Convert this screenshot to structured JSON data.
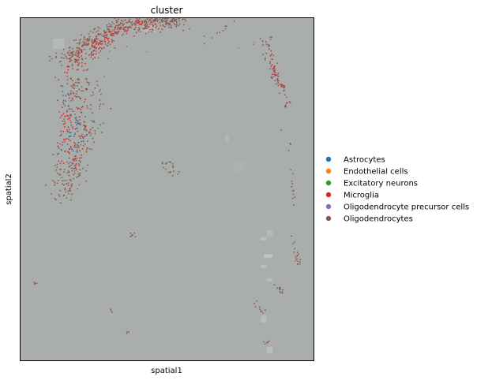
{
  "chart_data": {
    "type": "scatter",
    "title": "cluster",
    "xlabel": "spatial1",
    "ylabel": "spatial2",
    "xlim": [
      0,
      100
    ],
    "ylim": [
      0,
      100
    ],
    "grid": false,
    "background_color": "#a9adab",
    "legend_position": "right",
    "legend": [
      {
        "name": "Astrocytes",
        "color": "#1f77b4"
      },
      {
        "name": "Endothelial cells",
        "color": "#ff7f0e"
      },
      {
        "name": "Excitatory neurons",
        "color": "#2ca02c"
      },
      {
        "name": "Microglia",
        "color": "#d62728"
      },
      {
        "name": "Oligodendrocyte precursor cells",
        "color": "#9467bd"
      },
      {
        "name": "Oligodendrocytes",
        "color": "#8c564b"
      }
    ],
    "point_regions": [
      {
        "cluster": "Oligodendrocytes",
        "path": [
          [
            10,
            20,
            88
          ],
          [
            16,
            27,
            91
          ],
          [
            24,
            35,
            96
          ],
          [
            32,
            45,
            99
          ],
          [
            40,
            55,
            100
          ],
          [
            50,
            57,
            99
          ]
        ],
        "spread": 2.2,
        "count": 460
      },
      {
        "cluster": "Oligodendrocytes",
        "path": [
          [
            12,
            25,
            83
          ],
          [
            14,
            30,
            75
          ],
          [
            12,
            28,
            65
          ],
          [
            11,
            22,
            56
          ],
          [
            10,
            20,
            48
          ]
        ],
        "spread": 2.2,
        "count": 260
      },
      {
        "cluster": "Oligodendrocytes",
        "path": [
          [
            82,
            86,
            94
          ],
          [
            85,
            88,
            84
          ],
          [
            88,
            90,
            80
          ],
          [
            90,
            92,
            74
          ]
        ],
        "spread": 1.0,
        "count": 70
      },
      {
        "cluster": "Oligodendrocytes",
        "path": [
          [
            91,
            92,
            65
          ],
          [
            92,
            93,
            55
          ],
          [
            93,
            94,
            45
          ]
        ],
        "spread": 0.6,
        "count": 14
      },
      {
        "cluster": "Oligodendrocytes",
        "path": [
          [
            92,
            93,
            35
          ],
          [
            94,
            95,
            30
          ],
          [
            95,
            96,
            28
          ]
        ],
        "spread": 0.8,
        "count": 16
      },
      {
        "cluster": "Oligodendrocytes",
        "path": [
          [
            87,
            88,
            22
          ],
          [
            89,
            90,
            20
          ]
        ],
        "spread": 0.8,
        "count": 12
      },
      {
        "cluster": "Oligodendrocytes",
        "path": [
          [
            78,
            80,
            18
          ],
          [
            82,
            84,
            14
          ]
        ],
        "spread": 0.8,
        "count": 9
      },
      {
        "cluster": "Oligodendrocytes",
        "path": [
          [
            48,
            50,
            57
          ],
          [
            52,
            54,
            54
          ]
        ],
        "spread": 1.4,
        "count": 18
      },
      {
        "cluster": "Oligodendrocytes",
        "path": [
          [
            37,
            38,
            37
          ],
          [
            38,
            39,
            36
          ]
        ],
        "spread": 0.6,
        "count": 7
      },
      {
        "cluster": "Oligodendrocytes",
        "path": [
          [
            4,
            5,
            23
          ],
          [
            5,
            6,
            22
          ]
        ],
        "spread": 0.4,
        "count": 4
      },
      {
        "cluster": "Oligodendrocytes",
        "path": [
          [
            30,
            31,
            15
          ],
          [
            31,
            32,
            14
          ]
        ],
        "spread": 0.4,
        "count": 3
      },
      {
        "cluster": "Oligodendrocytes",
        "path": [
          [
            36,
            37,
            8
          ]
        ],
        "spread": 0.4,
        "count": 3
      },
      {
        "cluster": "Oligodendrocytes",
        "path": [
          [
            82,
            83,
            6
          ],
          [
            84,
            85,
            5
          ]
        ],
        "spread": 0.4,
        "count": 5
      },
      {
        "cluster": "Oligodendrocytes",
        "path": [
          [
            40,
            42,
            98
          ],
          [
            44,
            46,
            96
          ]
        ],
        "spread": 1.5,
        "count": 20
      },
      {
        "cluster": "Oligodendrocytes",
        "path": [
          [
            60,
            62,
            92
          ],
          [
            70,
            72,
            98
          ]
        ],
        "spread": 1.2,
        "count": 10
      },
      {
        "cluster": "Microglia",
        "path": [
          [
            12,
            22,
            84
          ],
          [
            20,
            30,
            92
          ],
          [
            30,
            40,
            97
          ],
          [
            40,
            50,
            99
          ]
        ],
        "spread": 2.0,
        "count": 140
      },
      {
        "cluster": "Microglia",
        "path": [
          [
            12,
            22,
            78
          ],
          [
            13,
            25,
            68
          ],
          [
            11,
            22,
            58
          ]
        ],
        "spread": 2.0,
        "count": 90
      },
      {
        "cluster": "Microglia",
        "path": [
          [
            84,
            86,
            88
          ],
          [
            88,
            90,
            80
          ]
        ],
        "spread": 0.8,
        "count": 18
      },
      {
        "cluster": "Astrocytes",
        "path": [
          [
            14,
            18,
            80
          ],
          [
            16,
            22,
            70
          ],
          [
            14,
            20,
            62
          ]
        ],
        "spread": 2.0,
        "count": 30
      },
      {
        "cluster": "Astrocytes",
        "path": [
          [
            84,
            86,
            91
          ],
          [
            94,
            95,
            30
          ]
        ],
        "spread": 0.6,
        "count": 6
      },
      {
        "cluster": "Excitatory neurons",
        "path": [
          [
            20,
            24,
            60
          ],
          [
            28,
            30,
            88
          ]
        ],
        "spread": 1.5,
        "count": 10
      },
      {
        "cluster": "Oligodendrocyte precursor cells",
        "path": [
          [
            22,
            24,
            90
          ],
          [
            84,
            85,
            92
          ]
        ],
        "spread": 1.5,
        "count": 8
      }
    ],
    "background_tiles": [
      {
        "x0": 11,
        "x1": 15,
        "y0": 91,
        "y1": 94,
        "shade": "#b5b9b7"
      },
      {
        "x0": 42,
        "x1": 46,
        "y0": 96,
        "y1": 98,
        "shade": "#b7bbb9"
      },
      {
        "x0": 70,
        "x1": 71,
        "y0": 64,
        "y1": 66,
        "shade": "#b4b8b6"
      },
      {
        "x0": 82,
        "x1": 84,
        "y0": 35,
        "y1": 36,
        "shade": "#b9bdbb"
      },
      {
        "x0": 84,
        "x1": 86,
        "y0": 36,
        "y1": 38,
        "shade": "#b5b9b7"
      },
      {
        "x0": 83,
        "x1": 86,
        "y0": 30,
        "y1": 31,
        "shade": "#c0c4c2"
      },
      {
        "x0": 82,
        "x1": 84,
        "y0": 27,
        "y1": 28,
        "shade": "#b8bcba"
      },
      {
        "x0": 84,
        "x1": 86,
        "y0": 23,
        "y1": 24,
        "shade": "#b8bcba"
      },
      {
        "x0": 82,
        "x1": 84,
        "y0": 11,
        "y1": 13,
        "shade": "#b8bcba"
      },
      {
        "x0": 84,
        "x1": 86,
        "y0": 2,
        "y1": 4,
        "shade": "#b8bcba"
      },
      {
        "x0": 73,
        "x1": 76,
        "y0": 55,
        "y1": 58,
        "shade": "#aeb2b0"
      }
    ]
  }
}
